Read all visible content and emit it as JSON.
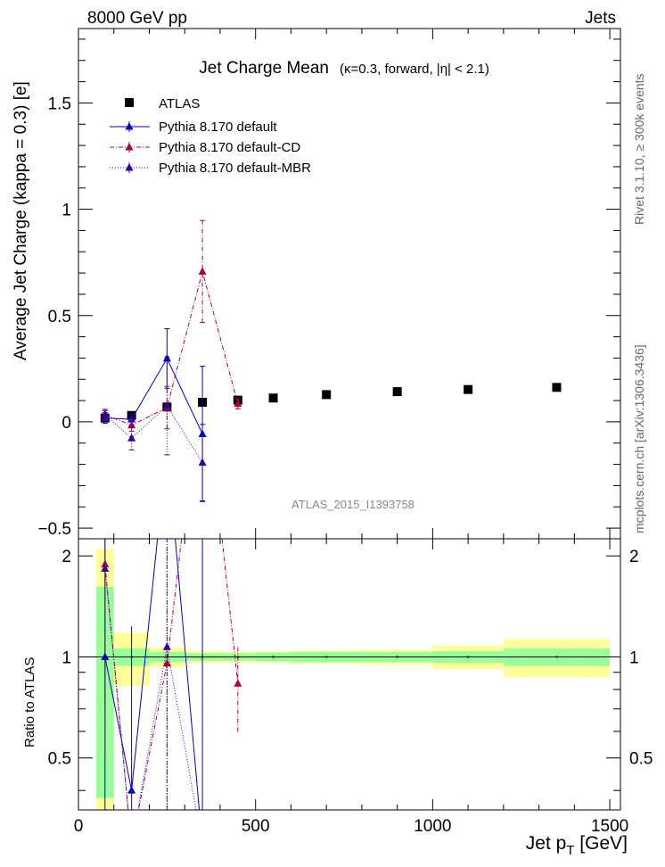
{
  "header": {
    "left": "8000 GeV pp",
    "right": "Jets",
    "side_top": "Rivet 3.1.10, ≥ 300k events",
    "side_bottom": "mcplots.cern.ch [arXiv:1306.3436]",
    "analysis_id": "ATLAS_2015_I1393758"
  },
  "chart_data": {
    "type": "scatter",
    "title": "Jet Charge Mean",
    "subtitle": "(κ=0.3, forward, |η| < 2.1)",
    "xlabel": "Jet p_T [GeV]",
    "ylabel": "Average Jet Charge (kappa = 0.3) [e]",
    "xlim": [
      0,
      1530
    ],
    "ylim": [
      -0.55,
      1.85
    ],
    "x_ticks": [
      "0",
      "500",
      "1000",
      "1500"
    ],
    "y_ticks": [
      "−0.5",
      "0",
      "0.5",
      "1",
      "1.5"
    ],
    "legend_position": "top-left",
    "data": {
      "name": "ATLAS",
      "color": "#000000",
      "bins": [
        [
          50,
          100
        ],
        [
          100,
          200
        ],
        [
          200,
          300
        ],
        [
          300,
          400
        ],
        [
          400,
          500
        ],
        [
          500,
          600
        ],
        [
          600,
          800
        ],
        [
          800,
          1000
        ],
        [
          1000,
          1200
        ],
        [
          1200,
          1500
        ]
      ],
      "x": [
        75,
        150,
        250,
        350,
        450,
        550,
        700,
        900,
        1100,
        1350
      ],
      "y": [
        0.018,
        0.03,
        0.07,
        0.092,
        0.102,
        0.112,
        0.128,
        0.142,
        0.152,
        0.162
      ]
    },
    "series": [
      {
        "name": "Pythia 8.170 default",
        "color": "#0000cc",
        "dash": "",
        "x": [
          75,
          150,
          250,
          350
        ],
        "y": [
          0.018,
          0.012,
          0.298,
          -0.057
        ],
        "err": [
          0.025,
          0.025,
          0.14,
          0.318
        ]
      },
      {
        "name": "Pythia 8.170 default-CD",
        "color": "#aa0044",
        "dash": "5,2,1,2",
        "x": [
          75,
          150,
          250,
          350,
          450
        ],
        "y": [
          0.034,
          -0.016,
          0.067,
          0.707,
          0.085
        ],
        "err": [
          0.025,
          0.028,
          0.1,
          0.24,
          0.024
        ]
      },
      {
        "name": "Pythia 8.170 default-MBR",
        "color": "#330099",
        "dash": "1,2",
        "x": [
          75,
          150,
          250,
          350
        ],
        "y": [
          0.033,
          -0.077,
          0.075,
          -0.192
        ],
        "err": [
          0.02,
          0.055,
          0.23,
          0.18
        ]
      }
    ],
    "ratio": {
      "ylabel": "Ratio to ATLAS",
      "ylim": [
        0.35,
        2.25
      ],
      "y_ticks": [
        "0.5",
        "1",
        "2"
      ],
      "stat_band": [
        0.62,
        0.06,
        0.035,
        0.025,
        0.025,
        0.03,
        0.035,
        0.035,
        0.04,
        0.06
      ],
      "total_band": [
        1.1,
        0.18,
        0.065,
        0.04,
        0.035,
        0.04,
        0.045,
        0.05,
        0.08,
        0.13
      ],
      "band_colors": {
        "stat": "#99ff99",
        "total": "#ffff99"
      }
    }
  }
}
